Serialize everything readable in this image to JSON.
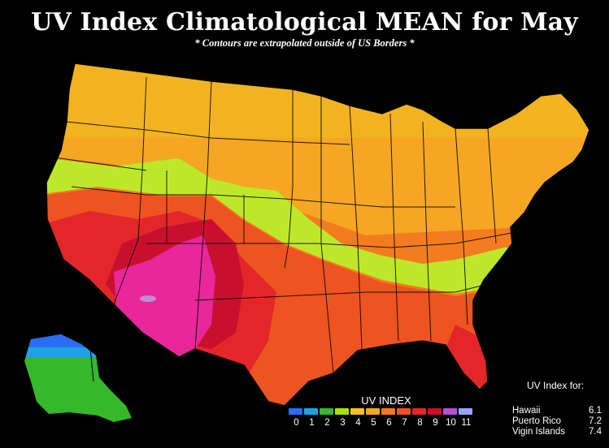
{
  "title": "UV Index Climatological MEAN for May",
  "subtitle": "* Contours are extrapolated outside of US Borders *",
  "legend": {
    "title": "UV INDEX",
    "levels": [
      {
        "label": "0",
        "color": "#2a6df4"
      },
      {
        "label": "1",
        "color": "#1fa3e0"
      },
      {
        "label": "2",
        "color": "#35b82a"
      },
      {
        "label": "3",
        "color": "#a8e000"
      },
      {
        "label": "4",
        "color": "#f2c21a"
      },
      {
        "label": "5",
        "color": "#f5a623"
      },
      {
        "label": "6",
        "color": "#f27c1f"
      },
      {
        "label": "7",
        "color": "#ee5322"
      },
      {
        "label": "8",
        "color": "#e2262a"
      },
      {
        "label": "9",
        "color": "#c8102e"
      },
      {
        "label": "10",
        "color": "#b44fd6"
      },
      {
        "label": "11",
        "color": "#9aa3ff"
      }
    ]
  },
  "territories": {
    "header": "UV Index for:",
    "items": [
      {
        "name": "Hawaii",
        "value": "6.1"
      },
      {
        "name": "Puerto Rico",
        "value": "7.2"
      },
      {
        "name": "Vigin Islands",
        "value": "7.4"
      }
    ]
  },
  "colors": {
    "background": "#000000",
    "boundary": "#000000"
  }
}
